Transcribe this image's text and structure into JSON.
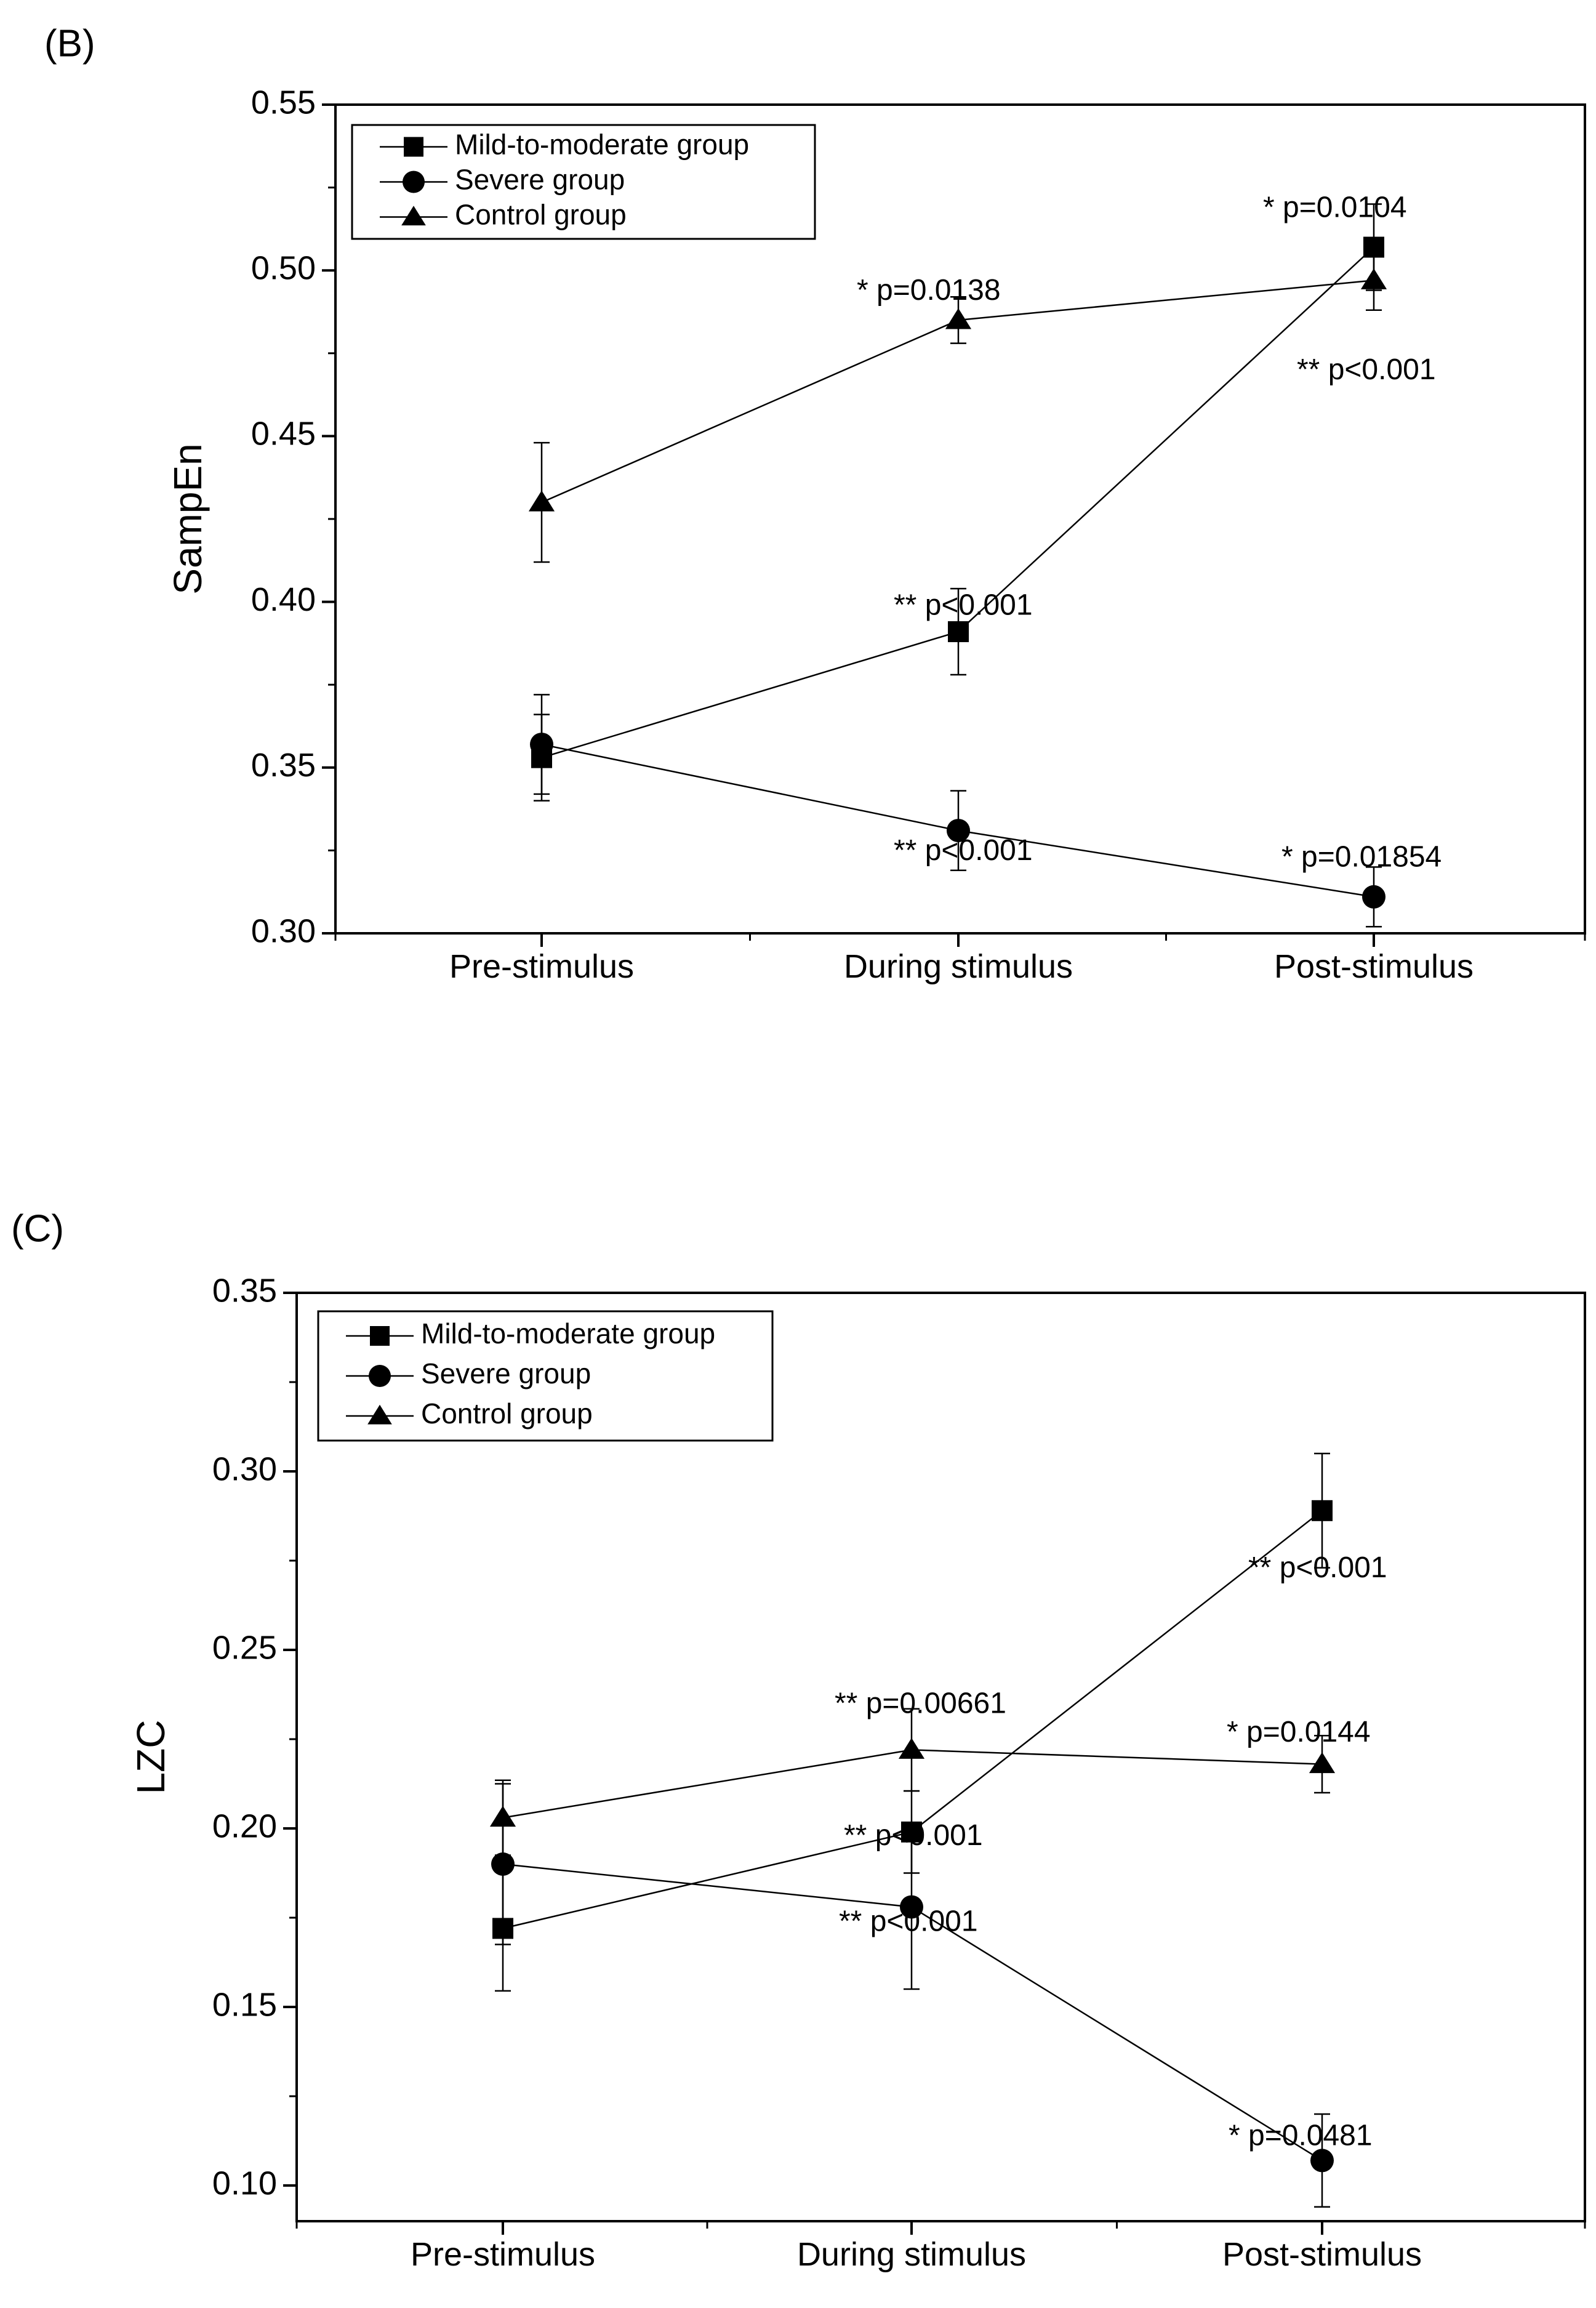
{
  "chart_data": [
    {
      "type": "line",
      "panel_label": "(B)",
      "title": "",
      "xlabel": "",
      "ylabel": "SampEn",
      "categories": [
        "Pre-stimulus",
        "During stimulus",
        "Post-stimulus"
      ],
      "ylim": [
        0.3,
        0.55
      ],
      "yticks": [
        "0.30",
        "0.35",
        "0.40",
        "0.45",
        "0.50",
        "0.55"
      ],
      "grid": false,
      "legend_position": "top-left",
      "series": [
        {
          "name": "Mild-to-moderate group",
          "marker": "square",
          "values": [
            0.353,
            0.391,
            0.507
          ],
          "errors": [
            0.013,
            0.013,
            0.013
          ]
        },
        {
          "name": "Severe group",
          "marker": "circle",
          "values": [
            0.357,
            0.331,
            0.311
          ],
          "errors": [
            0.015,
            0.012,
            0.009
          ]
        },
        {
          "name": "Control group",
          "marker": "triangle",
          "values": [
            0.43,
            0.485,
            0.497
          ],
          "errors": [
            0.018,
            0.007,
            0.009
          ]
        }
      ],
      "annotations": [
        {
          "text": "* p=0.0138",
          "x": "During stimulus",
          "y": 0.4935
        },
        {
          "text": "* p=0.0104",
          "x": "Post-stimulus",
          "y": 0.5185
        },
        {
          "text": "** p<0.001",
          "x": "Post-stimulus",
          "y": 0.4695
        },
        {
          "text": "** p<0.001",
          "x": "During stimulus",
          "y": 0.3985
        },
        {
          "text": "** p<0.001",
          "x": "During stimulus",
          "y": 0.3245
        },
        {
          "text": "* p=0.01854",
          "x": "Post-stimulus",
          "y": 0.3225
        }
      ]
    },
    {
      "type": "line",
      "panel_label": "(C)",
      "title": "",
      "xlabel": "",
      "ylabel": "LZC",
      "categories": [
        "Pre-stimulus",
        "During stimulus",
        "Post-stimulus"
      ],
      "ylim": [
        0.09,
        0.35
      ],
      "yticks": [
        "0.10",
        "0.15",
        "0.20",
        "0.25",
        "0.30",
        "0.35"
      ],
      "grid": false,
      "legend_position": "top-left",
      "series": [
        {
          "name": "Mild-to-moderate group",
          "marker": "square",
          "values": [
            0.172,
            0.199,
            0.289
          ],
          "errors": [
            0.0175,
            0.0115,
            0.016
          ]
        },
        {
          "name": "Severe group",
          "marker": "circle",
          "values": [
            0.19,
            0.178,
            0.107
          ],
          "errors": [
            0.0225,
            0.023,
            0.013
          ]
        },
        {
          "name": "Control group",
          "marker": "triangle",
          "values": [
            0.203,
            0.222,
            0.218
          ],
          "errors": [
            0.0105,
            0.0115,
            0.008
          ]
        }
      ],
      "annotations": [
        {
          "text": "** p=0.00661",
          "x": "During stimulus",
          "y": 0.2345
        },
        {
          "text": "* p=0.0144",
          "x": "Post-stimulus",
          "y": 0.2265
        },
        {
          "text": "** p<0.001",
          "x": "Post-stimulus",
          "y": 0.2725
        },
        {
          "text": "** p<0.001",
          "x": "During stimulus",
          "y": 0.1975
        },
        {
          "text": "** p<0.001",
          "x": "During stimulus",
          "y": 0.1735
        },
        {
          "text": "* p=0.0481",
          "x": "Post-stimulus",
          "y": 0.1135
        }
      ]
    }
  ]
}
